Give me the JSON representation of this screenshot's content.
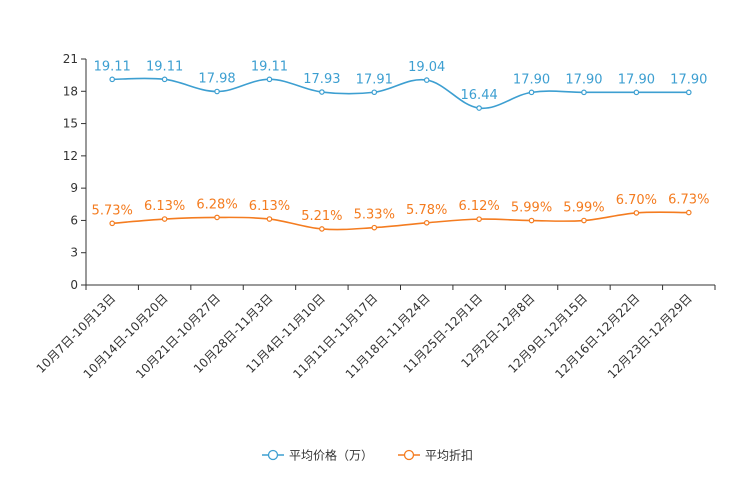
{
  "chart_data": {
    "type": "line",
    "title": "",
    "xlabel": "",
    "ylabel": "",
    "ylim": [
      0,
      21
    ],
    "yticks": [
      0,
      3,
      6,
      9,
      12,
      15,
      18,
      21
    ],
    "grid": false,
    "legend_position": "bottom-center",
    "categories": [
      "10月7日-10月13日",
      "10月14日-10月20日",
      "10月21日-10月27日",
      "10月28日-11月3日",
      "11月4日-11月10日",
      "11月11日-11月17日",
      "11月18日-11月24日",
      "11月25日-12月1日",
      "12月2日-12月8日",
      "12月9日-12月15日",
      "12月16日-12月22日",
      "12月23日-12月29日"
    ],
    "series": [
      {
        "name": "平均价格（万）",
        "color": "#3d9fd1",
        "values": [
          19.11,
          19.11,
          17.98,
          19.11,
          17.93,
          17.91,
          19.04,
          16.44,
          17.9,
          17.9,
          17.9,
          17.9
        ],
        "labels": [
          "19.11",
          "19.11",
          "17.98",
          "19.11",
          "17.93",
          "17.91",
          "19.04",
          "16.44",
          "17.90",
          "17.90",
          "17.90",
          "17.90"
        ]
      },
      {
        "name": "平均折扣",
        "color": "#f47c20",
        "values": [
          5.73,
          6.13,
          6.28,
          6.13,
          5.21,
          5.33,
          5.78,
          6.12,
          5.99,
          5.99,
          6.7,
          6.73
        ],
        "labels": [
          "5.73%",
          "6.13%",
          "6.28%",
          "6.13%",
          "5.21%",
          "5.33%",
          "5.78%",
          "6.12%",
          "5.99%",
          "5.99%",
          "6.70%",
          "6.73%"
        ]
      }
    ]
  }
}
